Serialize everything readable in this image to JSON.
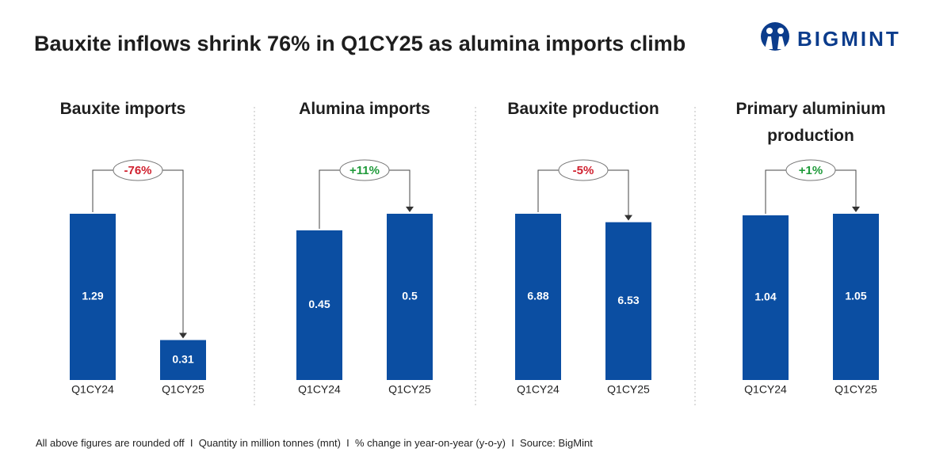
{
  "title": "Bauxite inflows shrink 76% in Q1CY25 as alumina imports climb",
  "brand": "BIGMINT",
  "footnote": "All above figures are rounded off  I  Quantity in million tonnes (mnt)  I  % change in year-on-year (y-o-y)  I  Source: BigMint",
  "chart_data": [
    {
      "type": "bar",
      "title": "Bauxite imports",
      "categories": [
        "Q1CY24",
        "Q1CY25"
      ],
      "values": [
        1.29,
        0.31
      ],
      "color": "#0b4ea2",
      "annotation": "-76%",
      "annotation_color": "#d0202e"
    },
    {
      "type": "bar",
      "title": "Alumina imports",
      "categories": [
        "Q1CY24",
        "Q1CY25"
      ],
      "values": [
        0.45,
        0.5
      ],
      "color": "#0b4ea2",
      "annotation": "+11%",
      "annotation_color": "#1f9a3a"
    },
    {
      "type": "bar",
      "title": "Bauxite production",
      "categories": [
        "Q1CY24",
        "Q1CY25"
      ],
      "values": [
        6.88,
        6.53
      ],
      "color": "#0b4ea2",
      "annotation": "-5%",
      "annotation_color": "#d0202e"
    },
    {
      "type": "bar",
      "title": "Primary aluminium production",
      "categories": [
        "Q1CY24",
        "Q1CY25"
      ],
      "values": [
        1.04,
        1.05
      ],
      "color": "#0b4ea2",
      "annotation": "+1%",
      "annotation_color": "#1f9a3a"
    }
  ]
}
